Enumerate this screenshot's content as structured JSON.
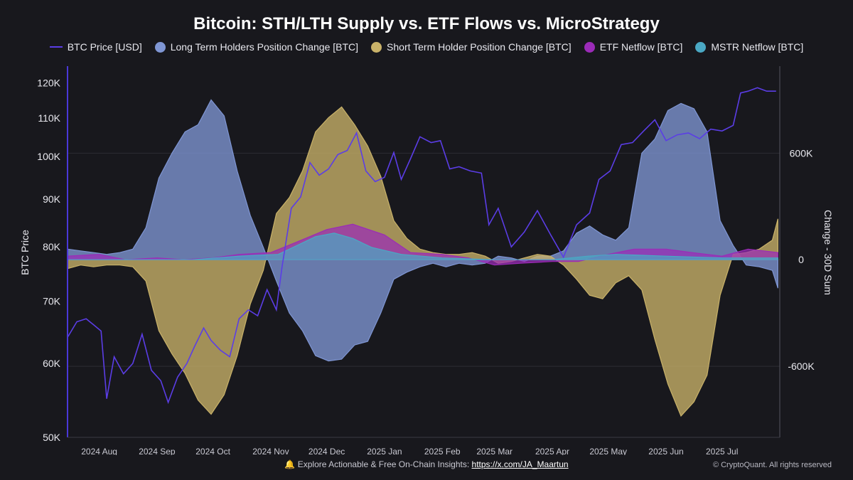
{
  "title": "Bitcoin: STH/LTH Supply vs. ETF Flows vs. MicroStrategy",
  "footer": {
    "icon": "bell-icon",
    "text": "Explore Actionable & Free On-Chain Insights: ",
    "link": "https://x.com/JA_Maartun",
    "copyright": "© CryptoQuant. All rights reserved"
  },
  "colors": {
    "price": "#5b3de6",
    "lth": "#7f96d4",
    "sth": "#c9b269",
    "etf": "#9b2bb8",
    "mstr": "#4aa8c4"
  },
  "chart_data": {
    "type": "area",
    "legend_position": "top",
    "grid": true,
    "y_scale": "log",
    "ylabel": "BTC Price",
    "y2label": "Change - 30D Sum",
    "ylim": [
      50000,
      125000
    ],
    "y_ticks": [
      50000,
      60000,
      70000,
      80000,
      90000,
      100000,
      110000,
      120000
    ],
    "y_tick_labels": [
      "50K",
      "60K",
      "70K",
      "80K",
      "90K",
      "100K",
      "110K",
      "120K"
    ],
    "y2lim": [
      -1000000,
      1090000
    ],
    "y2_ticks": [
      -600000,
      0,
      600000
    ],
    "y2_tick_labels": [
      "-600K",
      "0",
      "600K"
    ],
    "xlim": [
      "2024-07-15",
      "2025-08-01"
    ],
    "x_ticks": [
      "2024-08-01",
      "2024-09-01",
      "2024-10-01",
      "2024-11-01",
      "2024-12-01",
      "2025-01-01",
      "2025-02-01",
      "2025-03-01",
      "2025-04-01",
      "2025-05-01",
      "2025-06-01",
      "2025-07-01"
    ],
    "x_tick_labels": [
      "2024 Aug",
      "2024 Sep",
      "2024 Oct",
      "2024 Nov",
      "2024 Dec",
      "2025 Jan",
      "2025 Feb",
      "2025 Mar",
      "2025 Apr",
      "2025 May",
      "2025 Jun",
      "2025 Jul"
    ],
    "series": [
      {
        "name": "BTC Price [USD]",
        "axis": "left",
        "kind": "line",
        "color": "#5b3de6",
        "x": [
          "2024-07-15",
          "2024-07-20",
          "2024-07-25",
          "2024-07-29",
          "2024-08-02",
          "2024-08-05",
          "2024-08-09",
          "2024-08-14",
          "2024-08-19",
          "2024-08-24",
          "2024-08-29",
          "2024-09-03",
          "2024-09-07",
          "2024-09-12",
          "2024-09-17",
          "2024-09-21",
          "2024-09-26",
          "2024-09-30",
          "2024-10-05",
          "2024-10-10",
          "2024-10-15",
          "2024-10-20",
          "2024-10-25",
          "2024-10-30",
          "2024-11-04",
          "2024-11-07",
          "2024-11-12",
          "2024-11-17",
          "2024-11-22",
          "2024-11-27",
          "2024-12-02",
          "2024-12-07",
          "2024-12-12",
          "2024-12-17",
          "2024-12-22",
          "2024-12-27",
          "2025-01-01",
          "2025-01-06",
          "2025-01-10",
          "2025-01-15",
          "2025-01-20",
          "2025-01-26",
          "2025-01-31",
          "2025-02-05",
          "2025-02-10",
          "2025-02-16",
          "2025-02-22",
          "2025-02-26",
          "2025-03-03",
          "2025-03-10",
          "2025-03-17",
          "2025-03-24",
          "2025-03-31",
          "2025-04-07",
          "2025-04-14",
          "2025-04-21",
          "2025-04-26",
          "2025-05-02",
          "2025-05-08",
          "2025-05-14",
          "2025-05-20",
          "2025-05-26",
          "2025-06-01",
          "2025-06-07",
          "2025-06-13",
          "2025-06-19",
          "2025-06-25",
          "2025-07-01",
          "2025-07-07",
          "2025-07-11",
          "2025-07-15",
          "2025-07-20",
          "2025-07-25",
          "2025-07-30"
        ],
        "values": [
          64000,
          66500,
          67000,
          66000,
          65000,
          55000,
          61000,
          58500,
          60000,
          64500,
          59000,
          57500,
          54500,
          58000,
          60000,
          62500,
          65500,
          63500,
          62000,
          61000,
          67000,
          68500,
          67500,
          72000,
          68500,
          76000,
          88000,
          90500,
          98500,
          95500,
          97000,
          100500,
          101500,
          106000,
          96500,
          94000,
          95000,
          101000,
          94500,
          99500,
          105000,
          103500,
          104000,
          97000,
          97500,
          96500,
          96000,
          84500,
          88000,
          80000,
          83000,
          87500,
          82500,
          78000,
          84500,
          87000,
          94500,
          96500,
          103000,
          103500,
          106500,
          109500,
          104000,
          105500,
          106000,
          104500,
          107000,
          106500,
          108000,
          117000,
          117500,
          118500,
          117500,
          117500
        ]
      },
      {
        "name": "Long Term Holders Position Change [BTC]",
        "axis": "right",
        "kind": "area",
        "color": "#7f96d4",
        "x": [
          "2024-07-15",
          "2024-07-22",
          "2024-07-29",
          "2024-08-05",
          "2024-08-12",
          "2024-08-19",
          "2024-08-26",
          "2024-09-02",
          "2024-09-09",
          "2024-09-16",
          "2024-09-23",
          "2024-09-30",
          "2024-10-07",
          "2024-10-14",
          "2024-10-21",
          "2024-10-28",
          "2024-11-04",
          "2024-11-11",
          "2024-11-18",
          "2024-11-25",
          "2024-12-02",
          "2024-12-09",
          "2024-12-16",
          "2024-12-23",
          "2024-12-30",
          "2025-01-06",
          "2025-01-13",
          "2025-01-20",
          "2025-01-27",
          "2025-02-03",
          "2025-02-10",
          "2025-02-17",
          "2025-02-24",
          "2025-03-03",
          "2025-03-10",
          "2025-03-17",
          "2025-03-24",
          "2025-03-31",
          "2025-04-07",
          "2025-04-14",
          "2025-04-21",
          "2025-04-28",
          "2025-05-05",
          "2025-05-12",
          "2025-05-19",
          "2025-05-26",
          "2025-06-02",
          "2025-06-09",
          "2025-06-16",
          "2025-06-23",
          "2025-06-30",
          "2025-07-07",
          "2025-07-14",
          "2025-07-21",
          "2025-07-28",
          "2025-07-31"
        ],
        "values": [
          60000,
          50000,
          40000,
          30000,
          40000,
          60000,
          180000,
          460000,
          600000,
          720000,
          760000,
          900000,
          810000,
          500000,
          250000,
          70000,
          -120000,
          -300000,
          -400000,
          -540000,
          -570000,
          -560000,
          -480000,
          -460000,
          -300000,
          -110000,
          -70000,
          -40000,
          -20000,
          -40000,
          -20000,
          -30000,
          -20000,
          20000,
          10000,
          -10000,
          20000,
          20000,
          50000,
          150000,
          190000,
          140000,
          110000,
          180000,
          600000,
          680000,
          840000,
          880000,
          850000,
          720000,
          220000,
          80000,
          -30000,
          -40000,
          -60000,
          -160000
        ]
      },
      {
        "name": "Short Term Holder Position Change [BTC]",
        "axis": "right",
        "kind": "area",
        "color": "#c9b269",
        "x": [
          "2024-07-15",
          "2024-07-22",
          "2024-07-29",
          "2024-08-05",
          "2024-08-12",
          "2024-08-19",
          "2024-08-26",
          "2024-09-02",
          "2024-09-09",
          "2024-09-16",
          "2024-09-23",
          "2024-09-30",
          "2024-10-07",
          "2024-10-14",
          "2024-10-21",
          "2024-10-28",
          "2024-11-04",
          "2024-11-11",
          "2024-11-18",
          "2024-11-25",
          "2024-12-02",
          "2024-12-09",
          "2024-12-16",
          "2024-12-23",
          "2024-12-30",
          "2025-01-06",
          "2025-01-13",
          "2025-01-20",
          "2025-01-27",
          "2025-02-03",
          "2025-02-10",
          "2025-02-17",
          "2025-02-24",
          "2025-03-03",
          "2025-03-10",
          "2025-03-17",
          "2025-03-24",
          "2025-03-31",
          "2025-04-07",
          "2025-04-14",
          "2025-04-21",
          "2025-04-28",
          "2025-05-05",
          "2025-05-12",
          "2025-05-19",
          "2025-05-26",
          "2025-06-02",
          "2025-06-09",
          "2025-06-16",
          "2025-06-23",
          "2025-06-30",
          "2025-07-07",
          "2025-07-14",
          "2025-07-21",
          "2025-07-28",
          "2025-07-31"
        ],
        "values": [
          -50000,
          -30000,
          -40000,
          -30000,
          -30000,
          -40000,
          -120000,
          -400000,
          -530000,
          -640000,
          -790000,
          -870000,
          -760000,
          -540000,
          -250000,
          -60000,
          260000,
          350000,
          500000,
          720000,
          800000,
          860000,
          760000,
          640000,
          470000,
          220000,
          120000,
          60000,
          40000,
          30000,
          30000,
          40000,
          20000,
          -20000,
          -10000,
          10000,
          30000,
          20000,
          -30000,
          -110000,
          -200000,
          -220000,
          -130000,
          -90000,
          -170000,
          -450000,
          -700000,
          -880000,
          -800000,
          -650000,
          -200000,
          30000,
          40000,
          60000,
          110000,
          230000
        ]
      },
      {
        "name": "ETF Netflow [BTC]",
        "axis": "right",
        "kind": "area",
        "color": "#9b2bb8",
        "x": [
          "2024-07-15",
          "2024-08-01",
          "2024-08-15",
          "2024-09-01",
          "2024-09-15",
          "2024-10-01",
          "2024-10-15",
          "2024-11-01",
          "2024-11-15",
          "2024-12-01",
          "2024-12-15",
          "2025-01-01",
          "2025-01-15",
          "2025-02-01",
          "2025-02-15",
          "2025-03-01",
          "2025-03-15",
          "2025-04-01",
          "2025-04-15",
          "2025-05-01",
          "2025-05-15",
          "2025-06-01",
          "2025-06-15",
          "2025-07-01",
          "2025-07-15",
          "2025-07-31"
        ],
        "values": [
          20000,
          30000,
          0,
          10000,
          0,
          10000,
          30000,
          40000,
          100000,
          170000,
          200000,
          140000,
          40000,
          30000,
          10000,
          -30000,
          -20000,
          -10000,
          -10000,
          30000,
          60000,
          60000,
          40000,
          20000,
          60000,
          40000
        ]
      },
      {
        "name": "MSTR Netflow [BTC]",
        "axis": "right",
        "kind": "area",
        "color": "#4aa8c4",
        "x": [
          "2024-07-15",
          "2024-08-01",
          "2024-09-01",
          "2024-09-20",
          "2024-10-15",
          "2024-11-05",
          "2024-11-15",
          "2024-11-25",
          "2024-12-05",
          "2024-12-15",
          "2024-12-25",
          "2025-01-10",
          "2025-02-01",
          "2025-03-01",
          "2025-04-01",
          "2025-04-20",
          "2025-05-05",
          "2025-06-01",
          "2025-07-01",
          "2025-07-31"
        ],
        "values": [
          0,
          0,
          0,
          0,
          20000,
          30000,
          80000,
          130000,
          150000,
          120000,
          70000,
          30000,
          10000,
          0,
          0,
          20000,
          30000,
          20000,
          10000,
          10000
        ]
      }
    ]
  }
}
